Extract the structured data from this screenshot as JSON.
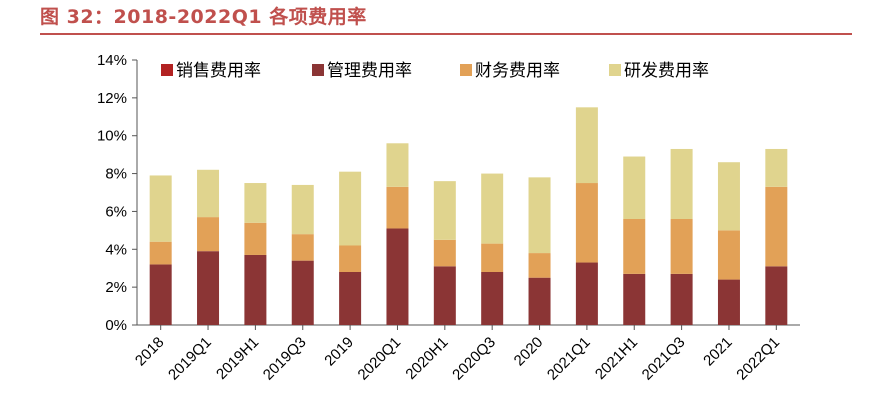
{
  "figure_title": "图 32：2018-2022Q1 各项费用率",
  "colors": {
    "title": "#c0504d",
    "sales": "#b22222",
    "admin": "#8b3535",
    "finance": "#e2a157",
    "rnd": "#e0d48e",
    "axis": "#555555"
  },
  "chart_data": {
    "type": "bar",
    "stacked": true,
    "categories": [
      "2018",
      "2019Q1",
      "2019H1",
      "2019Q3",
      "2019",
      "2020Q1",
      "2020H1",
      "2020Q3",
      "2020",
      "2021Q1",
      "2021H1",
      "2021Q3",
      "2021",
      "2022Q1"
    ],
    "y_tick_labels": [
      "0%",
      "2%",
      "4%",
      "6%",
      "8%",
      "10%",
      "12%",
      "14%"
    ],
    "ylim": [
      0,
      14
    ],
    "grid": false,
    "legend_position": "top",
    "series": [
      {
        "name": "销售费用率",
        "color": "#b22222",
        "values": [
          0,
          0,
          0,
          0,
          0,
          0,
          0,
          0,
          0,
          0,
          0,
          0,
          0,
          0
        ]
      },
      {
        "name": "管理费用率",
        "color": "#8b3535",
        "values": [
          3.2,
          3.9,
          3.7,
          3.4,
          2.8,
          5.1,
          3.1,
          2.8,
          2.5,
          3.3,
          2.7,
          2.7,
          2.4,
          3.1
        ]
      },
      {
        "name": "财务费用率",
        "color": "#e2a157",
        "values": [
          1.2,
          1.8,
          1.7,
          1.4,
          1.4,
          2.2,
          1.4,
          1.5,
          1.3,
          4.2,
          2.9,
          2.9,
          2.6,
          4.2
        ]
      },
      {
        "name": "研发费用率",
        "color": "#e0d48e",
        "values": [
          3.5,
          2.5,
          2.1,
          2.6,
          3.9,
          2.3,
          3.1,
          3.7,
          4.0,
          4.0,
          3.3,
          3.7,
          3.6,
          2.0
        ]
      }
    ]
  }
}
